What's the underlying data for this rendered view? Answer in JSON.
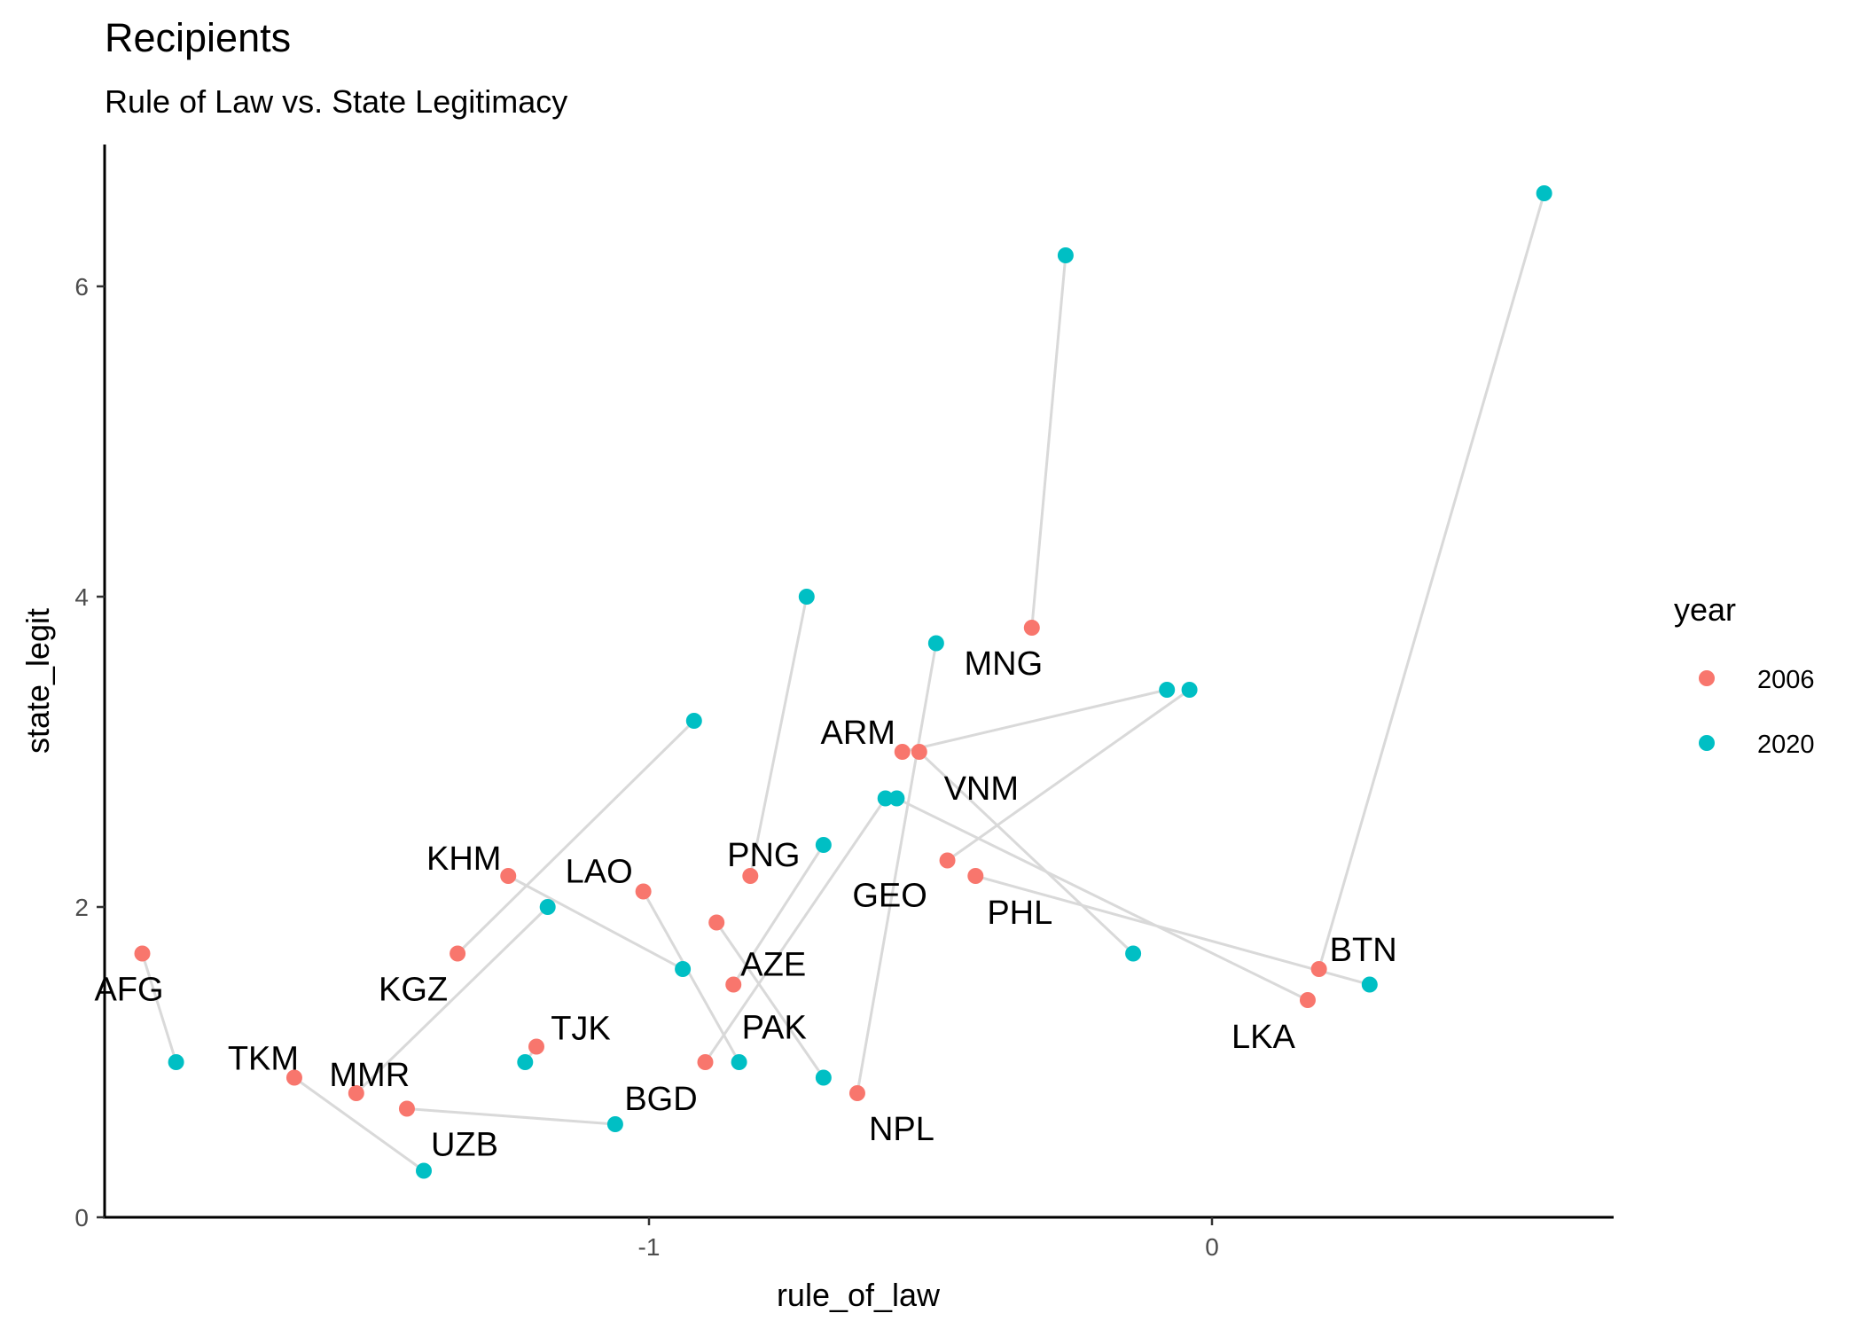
{
  "chart_data": {
    "type": "scatter",
    "title": "Recipients",
    "subtitle": "Rule of Law vs. State Legitimacy",
    "xlabel": "rule_of_law",
    "ylabel": "state_legit",
    "x_ticks": [
      -1,
      0
    ],
    "y_ticks": [
      0,
      2,
      4,
      6
    ],
    "xlim": [
      -1.98,
      0.71
    ],
    "ylim": [
      -0.02,
      6.9
    ],
    "grid": false,
    "legend": {
      "title": "year",
      "position": "right",
      "entries": [
        {
          "label": "2006",
          "color": "#F8766D"
        },
        {
          "label": "2020",
          "color": "#00BFC4"
        }
      ]
    },
    "connector_color": "#d9d9d9",
    "series": [
      {
        "name": "2006",
        "color": "#F8766D",
        "points": [
          {
            "label": "AFG",
            "x": -1.9,
            "y": 1.7
          },
          {
            "label": "TKM",
            "x": -1.63,
            "y": 0.9
          },
          {
            "label": "MMR",
            "x": -1.52,
            "y": 0.8
          },
          {
            "label": "UZB",
            "x": -1.43,
            "y": 0.7
          },
          {
            "label": "KGZ",
            "x": -1.34,
            "y": 1.7
          },
          {
            "label": "KHM",
            "x": -1.25,
            "y": 2.2
          },
          {
            "label": "TJK",
            "x": -1.2,
            "y": 1.1
          },
          {
            "label": "LAO",
            "x": -1.01,
            "y": 2.1
          },
          {
            "label": "BGD",
            "x": -0.9,
            "y": 1.0
          },
          {
            "label": "PAK",
            "x": -0.88,
            "y": 1.9
          },
          {
            "label": "AZE",
            "x": -0.85,
            "y": 1.5
          },
          {
            "label": "PNG",
            "x": -0.82,
            "y": 2.2
          },
          {
            "label": "NPL",
            "x": -0.63,
            "y": 0.8
          },
          {
            "label": "ARM",
            "x": -0.55,
            "y": 3.0
          },
          {
            "label": "VNM",
            "x": -0.52,
            "y": 3.0
          },
          {
            "label": "GEO",
            "x": -0.47,
            "y": 2.3
          },
          {
            "label": "PHL",
            "x": -0.42,
            "y": 2.2
          },
          {
            "label": "MNG",
            "x": -0.32,
            "y": 3.8
          },
          {
            "label": "LKA",
            "x": 0.17,
            "y": 1.4
          },
          {
            "label": "BTN",
            "x": 0.19,
            "y": 1.6
          }
        ]
      },
      {
        "name": "2020",
        "color": "#00BFC4",
        "points": [
          {
            "label": "AFG",
            "x": -1.84,
            "y": 1.0
          },
          {
            "label": "TKM",
            "x": -1.4,
            "y": 0.3
          },
          {
            "label": "MMR",
            "x": -1.18,
            "y": 2.0
          },
          {
            "label": "UZB",
            "x": -1.06,
            "y": 0.6
          },
          {
            "label": "KGZ",
            "x": -0.92,
            "y": 3.2
          },
          {
            "label": "KHM",
            "x": -0.94,
            "y": 1.6
          },
          {
            "label": "TJK",
            "x": -1.22,
            "y": 1.0
          },
          {
            "label": "LAO",
            "x": -0.84,
            "y": 1.0
          },
          {
            "label": "BGD",
            "x": -0.58,
            "y": 2.7
          },
          {
            "label": "PAK",
            "x": -0.69,
            "y": 0.9
          },
          {
            "label": "AZE",
            "x": -0.69,
            "y": 2.4
          },
          {
            "label": "PNG",
            "x": -0.72,
            "y": 4.0
          },
          {
            "label": "NPL",
            "x": -0.49,
            "y": 3.7
          },
          {
            "label": "ARM",
            "x": -0.08,
            "y": 3.4
          },
          {
            "label": "VNM",
            "x": -0.14,
            "y": 1.7
          },
          {
            "label": "GEO",
            "x": -0.04,
            "y": 3.4
          },
          {
            "label": "PHL",
            "x": 0.28,
            "y": 1.5
          },
          {
            "label": "MNG",
            "x": -0.26,
            "y": 6.2
          },
          {
            "label": "LKA",
            "x": -0.56,
            "y": 2.7
          },
          {
            "label": "BTN",
            "x": 0.59,
            "y": 6.6
          }
        ]
      }
    ]
  }
}
